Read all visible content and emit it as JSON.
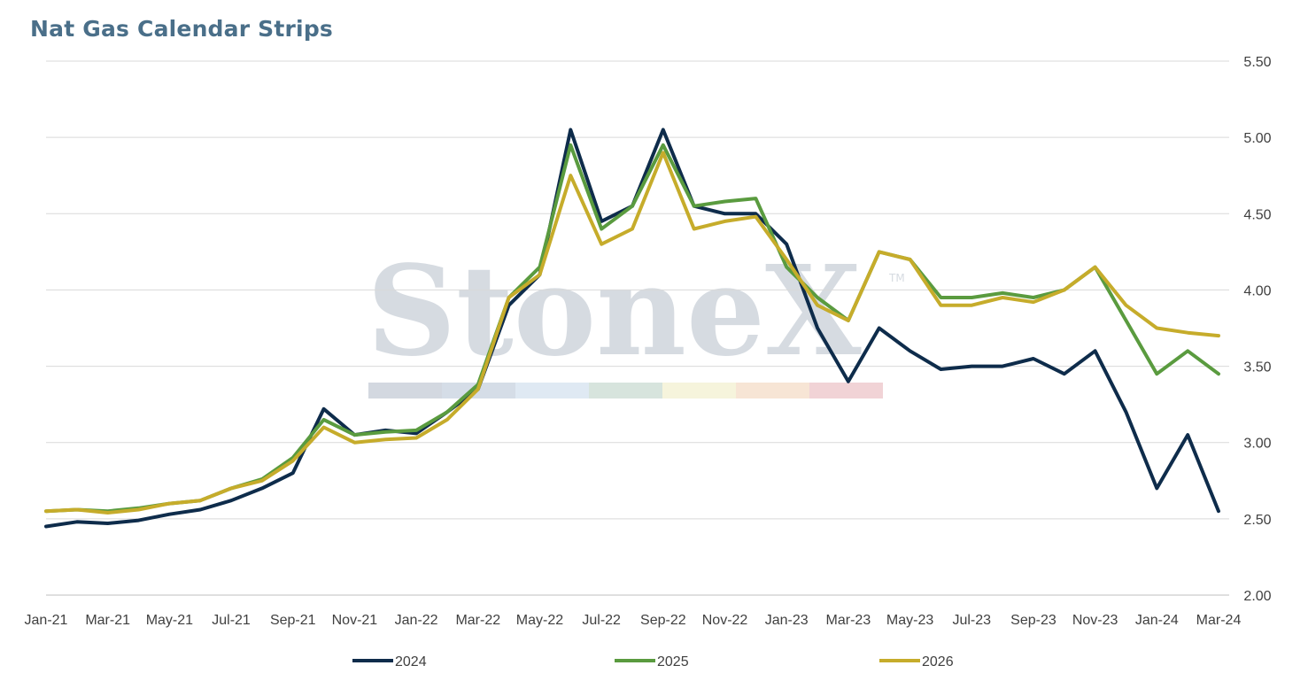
{
  "title": "Nat Gas Calendar Strips",
  "watermark": {
    "text": "StoneX",
    "trademark": "TM",
    "band_colors": [
      "#d3d8e0",
      "#d5dde7",
      "#dfe9f3",
      "#d7e4dd",
      "#f6f4dc",
      "#f7e5d5",
      "#f1d3d6"
    ]
  },
  "chart_data": {
    "type": "line",
    "title": "Nat Gas Calendar Strips",
    "xlabel": "",
    "ylabel": "",
    "ylim": [
      2.0,
      5.5
    ],
    "yaxis_side": "right",
    "grid": true,
    "legend_position": "bottom",
    "x_ticks": [
      "Jan-21",
      "Mar-21",
      "May-21",
      "Jul-21",
      "Sep-21",
      "Nov-21",
      "Jan-22",
      "Mar-22",
      "May-22",
      "Jul-22",
      "Sep-22",
      "Nov-22",
      "Jan-23",
      "Mar-23",
      "May-23",
      "Jul-23",
      "Sep-23",
      "Nov-23",
      "Jan-24",
      "Mar-24"
    ],
    "y_ticks": [
      "2.00",
      "2.50",
      "3.00",
      "3.50",
      "4.00",
      "4.50",
      "5.00",
      "5.50"
    ],
    "x": [
      "Jan-21",
      "Feb-21",
      "Mar-21",
      "Apr-21",
      "May-21",
      "Jun-21",
      "Jul-21",
      "Aug-21",
      "Sep-21",
      "Oct-21",
      "Nov-21",
      "Dec-21",
      "Jan-22",
      "Feb-22",
      "Mar-22",
      "Apr-22",
      "May-22",
      "Jun-22",
      "Jul-22",
      "Aug-22",
      "Sep-22",
      "Oct-22",
      "Nov-22",
      "Dec-22",
      "Jan-23",
      "Feb-23",
      "Mar-23",
      "Apr-23",
      "May-23",
      "Jun-23",
      "Jul-23",
      "Aug-23",
      "Sep-23",
      "Oct-23",
      "Nov-23",
      "Dec-23",
      "Jan-24",
      "Feb-24",
      "Mar-24"
    ],
    "series": [
      {
        "name": "2024",
        "color": "#0e2c4b",
        "values": [
          2.45,
          2.48,
          2.47,
          2.49,
          2.53,
          2.56,
          2.62,
          2.7,
          2.8,
          3.22,
          3.05,
          3.08,
          3.06,
          3.2,
          3.35,
          3.9,
          4.1,
          5.05,
          4.45,
          4.55,
          5.05,
          4.55,
          4.5,
          4.5,
          4.3,
          3.75,
          3.4,
          3.75,
          3.6,
          3.48,
          3.5,
          3.5,
          3.55,
          3.45,
          3.6,
          3.2,
          2.7,
          3.05,
          2.55
        ]
      },
      {
        "name": "2025",
        "color": "#5a9b3f",
        "values": [
          2.55,
          2.56,
          2.55,
          2.57,
          2.6,
          2.62,
          2.7,
          2.76,
          2.9,
          3.15,
          3.05,
          3.07,
          3.08,
          3.2,
          3.38,
          3.95,
          4.15,
          4.95,
          4.4,
          4.55,
          4.95,
          4.55,
          4.58,
          4.6,
          4.15,
          3.95,
          3.8,
          4.25,
          4.2,
          3.95,
          3.95,
          3.98,
          3.95,
          4.0,
          4.15,
          3.8,
          3.45,
          3.6,
          3.45
        ]
      },
      {
        "name": "2026",
        "color": "#c6ac2b",
        "values": [
          2.55,
          2.56,
          2.54,
          2.56,
          2.6,
          2.62,
          2.7,
          2.75,
          2.88,
          3.1,
          3.0,
          3.02,
          3.03,
          3.15,
          3.35,
          3.95,
          4.1,
          4.75,
          4.3,
          4.4,
          4.9,
          4.4,
          4.45,
          4.48,
          4.2,
          3.9,
          3.8,
          4.25,
          4.2,
          3.9,
          3.9,
          3.95,
          3.92,
          4.0,
          4.15,
          3.9,
          3.75,
          3.72,
          3.7
        ]
      }
    ]
  }
}
